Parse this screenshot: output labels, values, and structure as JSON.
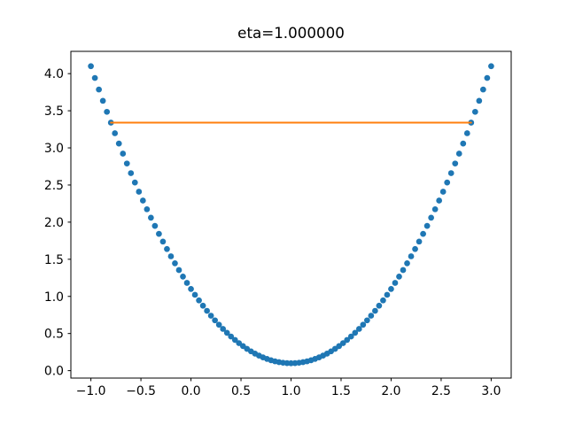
{
  "figure": {
    "background_color": "#ffffff",
    "plot_background_color": "#ffffff",
    "spine_color": "#000000"
  },
  "chart_data": {
    "type": "scatter",
    "title": "eta=1.000000",
    "xlabel": "",
    "ylabel": "",
    "grid": false,
    "legend": false,
    "xlim": [
      -1.2,
      3.2
    ],
    "ylim": [
      -0.1,
      4.3
    ],
    "xticks": [
      -1.0,
      -0.5,
      0.0,
      0.5,
      1.0,
      1.5,
      2.0,
      2.5,
      3.0
    ],
    "xtick_labels": [
      "−1.0",
      "−0.5",
      "0.0",
      "0.5",
      "1.0",
      "1.5",
      "2.0",
      "2.5",
      "3.0"
    ],
    "yticks": [
      0.0,
      0.5,
      1.0,
      1.5,
      2.0,
      2.5,
      3.0,
      3.5,
      4.0
    ],
    "ytick_labels": [
      "0.0",
      "0.5",
      "1.0",
      "1.5",
      "2.0",
      "2.5",
      "3.0",
      "3.5",
      "4.0"
    ],
    "series": [
      {
        "name": "quadratic-scatter",
        "type": "scatter",
        "marker": "point",
        "color": "#1f77b4",
        "x": [
          -1.0,
          -0.96,
          -0.92,
          -0.88,
          -0.84,
          -0.8,
          -0.76,
          -0.72,
          -0.68,
          -0.64,
          -0.6,
          -0.56,
          -0.52,
          -0.48,
          -0.44,
          -0.4,
          -0.36,
          -0.32,
          -0.28,
          -0.24,
          -0.2,
          -0.16,
          -0.12,
          -0.08,
          -0.04,
          0.0,
          0.04,
          0.08,
          0.12,
          0.16,
          0.2,
          0.24,
          0.28,
          0.32,
          0.36,
          0.4,
          0.44,
          0.48,
          0.52,
          0.56,
          0.6,
          0.64,
          0.68,
          0.72,
          0.76,
          0.8,
          0.84,
          0.88,
          0.92,
          0.96,
          1.0,
          1.04,
          1.08,
          1.12,
          1.16,
          1.2,
          1.24,
          1.28,
          1.32,
          1.36,
          1.4,
          1.44,
          1.48,
          1.52,
          1.56,
          1.6,
          1.64,
          1.68,
          1.72,
          1.76,
          1.8,
          1.84,
          1.88,
          1.92,
          1.96,
          2.0,
          2.04,
          2.08,
          2.12,
          2.16,
          2.2,
          2.24,
          2.28,
          2.32,
          2.36,
          2.4,
          2.44,
          2.48,
          2.52,
          2.56,
          2.6,
          2.64,
          2.68,
          2.72,
          2.76,
          2.8,
          2.84,
          2.88,
          2.92,
          2.96,
          3.0
        ],
        "y": [
          4.1,
          3.9416,
          3.7864,
          3.6344,
          3.4856,
          3.34,
          3.1976,
          3.0584,
          2.9224,
          2.7896,
          2.66,
          2.5336,
          2.4104,
          2.2904,
          2.1736,
          2.06,
          1.9496,
          1.8424,
          1.7384,
          1.6376,
          1.54,
          1.4456,
          1.3544,
          1.2664,
          1.1816,
          1.1,
          1.0216,
          0.9464,
          0.8744,
          0.8056,
          0.74,
          0.6776,
          0.6184,
          0.5624,
          0.5096,
          0.46,
          0.4136,
          0.3704,
          0.3304,
          0.2936,
          0.26,
          0.2296,
          0.2024,
          0.1784,
          0.1576,
          0.14,
          0.1256,
          0.1144,
          0.1064,
          0.1016,
          0.1,
          0.1016,
          0.1064,
          0.1144,
          0.1256,
          0.14,
          0.1576,
          0.1784,
          0.2024,
          0.2296,
          0.26,
          0.2936,
          0.3304,
          0.3704,
          0.4136,
          0.46,
          0.5096,
          0.5624,
          0.6184,
          0.6776,
          0.74,
          0.8056,
          0.8744,
          0.9464,
          1.0216,
          1.1,
          1.1816,
          1.2664,
          1.3544,
          1.4456,
          1.54,
          1.6376,
          1.7384,
          1.8424,
          1.9496,
          2.06,
          2.1736,
          2.2904,
          2.4104,
          2.5336,
          2.66,
          2.7896,
          2.9224,
          3.0584,
          3.1976,
          3.34,
          3.4856,
          3.6344,
          3.7864,
          3.9416,
          4.1
        ]
      },
      {
        "name": "horizontal-chord",
        "type": "line",
        "color": "#ff7f0e",
        "x": [
          -0.8,
          2.8
        ],
        "y": [
          3.34,
          3.34
        ]
      }
    ]
  }
}
